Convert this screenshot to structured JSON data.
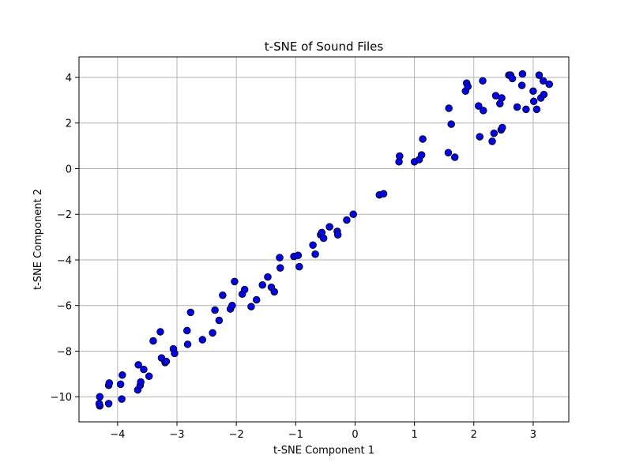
{
  "chart_data": {
    "type": "scatter",
    "title": "t-SNE of Sound Files",
    "xlabel": "t-SNE Component 1",
    "ylabel": "t-SNE Component 2",
    "xlim": [
      -4.65,
      3.6
    ],
    "ylim": [
      -11.1,
      4.9
    ],
    "xticks": [
      -4,
      -3,
      -2,
      -1,
      0,
      1,
      2,
      3
    ],
    "yticks": [
      4,
      2,
      0,
      -2,
      -4,
      -6,
      -8,
      -10
    ],
    "xtick_labels": [
      "−4",
      "−3",
      "−2",
      "−1",
      "0",
      "1",
      "2",
      "3"
    ],
    "ytick_labels": [
      "4",
      "2",
      "0",
      "−2",
      "−4",
      "−6",
      "−8",
      "−10"
    ],
    "grid": true,
    "point_color": "#0000ff",
    "edge_color": "#000000",
    "points": [
      [
        -4.3,
        -10.4
      ],
      [
        -4.31,
        -10.3
      ],
      [
        -4.3,
        -10.0
      ],
      [
        -4.15,
        -10.3
      ],
      [
        -4.15,
        -9.5
      ],
      [
        -4.14,
        -9.4
      ],
      [
        -3.95,
        -9.45
      ],
      [
        -3.93,
        -10.1
      ],
      [
        -3.92,
        -9.05
      ],
      [
        -3.66,
        -9.7
      ],
      [
        -3.62,
        -9.5
      ],
      [
        -3.61,
        -9.35
      ],
      [
        -3.65,
        -8.6
      ],
      [
        -3.56,
        -8.8
      ],
      [
        -3.47,
        -9.1
      ],
      [
        -3.4,
        -7.55
      ],
      [
        -3.28,
        -7.15
      ],
      [
        -3.26,
        -8.3
      ],
      [
        -3.2,
        -8.5
      ],
      [
        -3.18,
        -8.45
      ],
      [
        -3.06,
        -7.9
      ],
      [
        -3.04,
        -8.1
      ],
      [
        -2.83,
        -7.1
      ],
      [
        -2.82,
        -7.7
      ],
      [
        -2.77,
        -6.3
      ],
      [
        -2.57,
        -7.5
      ],
      [
        -2.4,
        -7.2
      ],
      [
        -2.36,
        -6.2
      ],
      [
        -2.29,
        -6.65
      ],
      [
        -2.23,
        -5.55
      ],
      [
        -2.1,
        -6.15
      ],
      [
        -2.07,
        -6.0
      ],
      [
        -2.03,
        -4.95
      ],
      [
        -1.9,
        -5.5
      ],
      [
        -1.86,
        -5.3
      ],
      [
        -1.75,
        -6.05
      ],
      [
        -1.66,
        -5.75
      ],
      [
        -1.56,
        -5.1
      ],
      [
        -1.47,
        -4.75
      ],
      [
        -1.41,
        -5.2
      ],
      [
        -1.36,
        -5.4
      ],
      [
        -1.27,
        -3.9
      ],
      [
        -1.26,
        -4.35
      ],
      [
        -1.03,
        -3.85
      ],
      [
        -0.96,
        -3.8
      ],
      [
        -0.94,
        -4.3
      ],
      [
        -0.71,
        -3.35
      ],
      [
        -0.67,
        -3.75
      ],
      [
        -0.58,
        -2.9
      ],
      [
        -0.56,
        -2.8
      ],
      [
        -0.53,
        -3.05
      ],
      [
        -0.43,
        -2.55
      ],
      [
        -0.3,
        -2.75
      ],
      [
        -0.29,
        -2.9
      ],
      [
        -0.14,
        -2.25
      ],
      [
        -0.03,
        -2.0
      ],
      [
        0.41,
        -1.15
      ],
      [
        0.48,
        -1.1
      ],
      [
        0.74,
        0.3
      ],
      [
        0.75,
        0.55
      ],
      [
        1.0,
        0.3
      ],
      [
        1.08,
        0.4
      ],
      [
        1.12,
        0.6
      ],
      [
        1.14,
        1.3
      ],
      [
        1.57,
        0.7
      ],
      [
        1.58,
        2.65
      ],
      [
        1.62,
        1.95
      ],
      [
        1.68,
        0.5
      ],
      [
        1.86,
        3.4
      ],
      [
        1.88,
        3.75
      ],
      [
        1.9,
        3.6
      ],
      [
        2.08,
        2.75
      ],
      [
        2.1,
        1.4
      ],
      [
        2.15,
        3.85
      ],
      [
        2.16,
        2.55
      ],
      [
        2.31,
        1.2
      ],
      [
        2.34,
        1.55
      ],
      [
        2.37,
        3.2
      ],
      [
        2.44,
        2.85
      ],
      [
        2.46,
        1.7
      ],
      [
        2.48,
        1.8
      ],
      [
        2.47,
        3.1
      ],
      [
        2.59,
        4.1
      ],
      [
        2.62,
        4.1
      ],
      [
        2.65,
        3.95
      ],
      [
        2.73,
        2.7
      ],
      [
        2.81,
        3.65
      ],
      [
        2.82,
        4.15
      ],
      [
        2.88,
        2.6
      ],
      [
        3.0,
        3.4
      ],
      [
        3.01,
        2.95
      ],
      [
        3.06,
        2.6
      ],
      [
        3.1,
        4.1
      ],
      [
        3.13,
        3.1
      ],
      [
        3.17,
        3.85
      ],
      [
        3.18,
        3.25
      ],
      [
        3.27,
        3.7
      ]
    ]
  }
}
